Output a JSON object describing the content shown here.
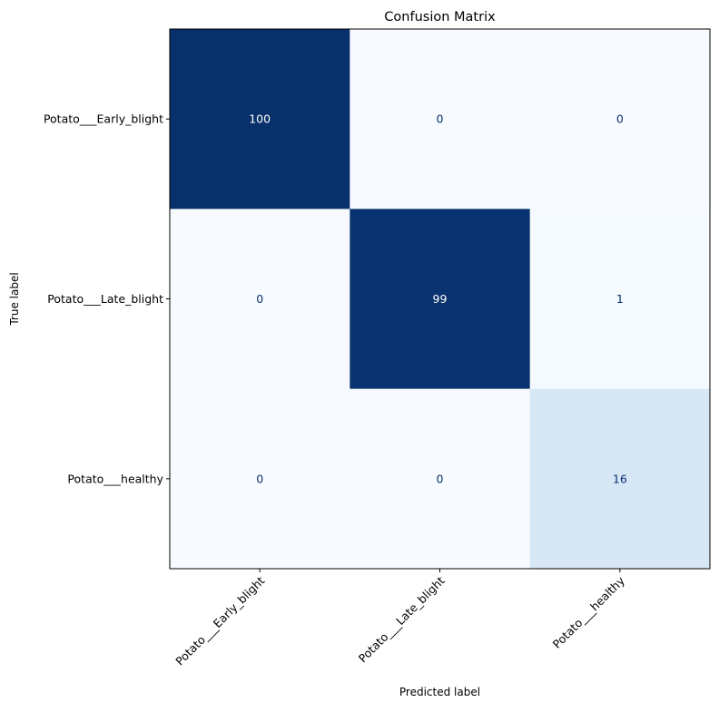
{
  "chart_data": {
    "type": "heatmap",
    "title": "Confusion Matrix",
    "xlabel": "Predicted label",
    "ylabel": "True label",
    "x_categories": [
      "Potato___Early_blight",
      "Potato___Late_blight",
      "Potato___healthy"
    ],
    "y_categories": [
      "Potato___Early_blight",
      "Potato___Late_blight",
      "Potato___healthy"
    ],
    "values": [
      [
        100,
        0,
        0
      ],
      [
        0,
        99,
        1
      ],
      [
        0,
        0,
        16
      ]
    ],
    "colormap": "Blues",
    "vmin": 0,
    "vmax": 100,
    "colorbar": false,
    "colors": {
      "low": "#f7fbff",
      "high": "#08306b",
      "text_dark": "#08306b",
      "text_light": "#ffffff"
    }
  }
}
